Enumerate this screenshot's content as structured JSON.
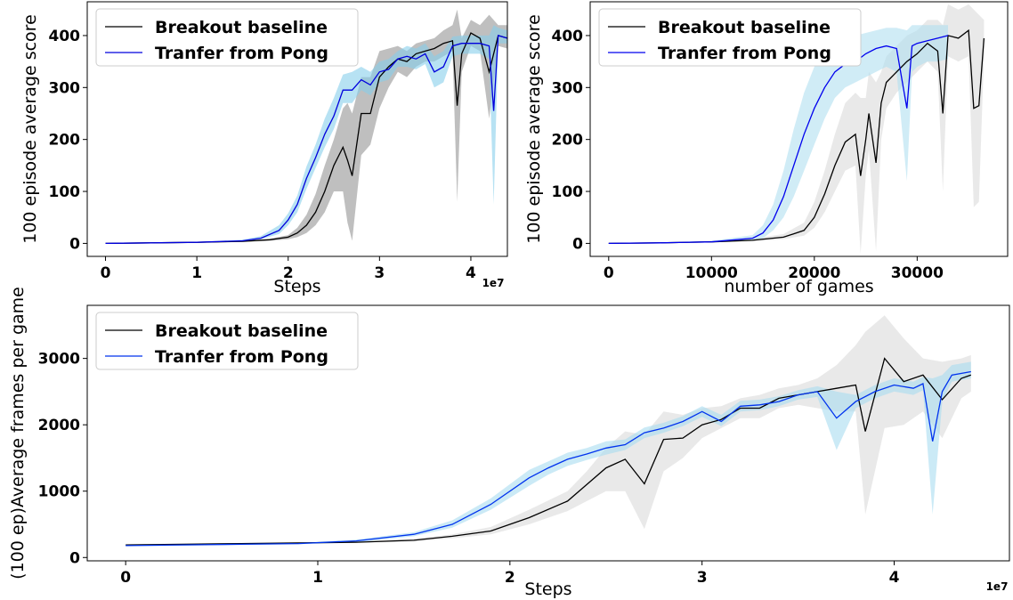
{
  "chart_data": [
    {
      "type": "line",
      "xlabel": "Steps",
      "ylabel": "100 episode average score",
      "x_offset_label": "1e7",
      "xlim": [
        -0.2,
        4.4
      ],
      "ylim": [
        -25,
        465
      ],
      "xticks": [
        0,
        1,
        2,
        3,
        4
      ],
      "xtick_labels": [
        "0",
        "1",
        "2",
        "3",
        "4"
      ],
      "yticks": [
        0,
        100,
        200,
        300,
        400
      ],
      "ytick_labels": [
        "0",
        "100",
        "200",
        "300",
        "400"
      ],
      "legend_position": "top-left",
      "series": [
        {
          "name": "Breakout baseline",
          "color": "#000000",
          "band_color": "#aaaaaa",
          "x": [
            0,
            0.5,
            1.0,
            1.5,
            1.8,
            2.0,
            2.1,
            2.2,
            2.3,
            2.4,
            2.5,
            2.6,
            2.65,
            2.7,
            2.8,
            2.9,
            3.0,
            3.1,
            3.2,
            3.3,
            3.4,
            3.5,
            3.6,
            3.7,
            3.8,
            3.85,
            3.9,
            4.0,
            4.1,
            4.2,
            4.3,
            4.4
          ],
          "values": [
            0,
            1,
            2,
            4,
            7,
            12,
            20,
            35,
            60,
            100,
            150,
            185,
            160,
            130,
            250,
            250,
            320,
            340,
            355,
            350,
            365,
            370,
            375,
            385,
            390,
            265,
            365,
            405,
            395,
            330,
            400,
            395
          ],
          "band_lower": [
            0,
            1,
            2,
            3,
            5,
            8,
            12,
            20,
            35,
            60,
            100,
            100,
            40,
            5,
            170,
            190,
            260,
            300,
            330,
            320,
            340,
            350,
            350,
            360,
            370,
            80,
            330,
            380,
            370,
            240,
            380,
            375
          ],
          "band_upper": [
            0,
            1,
            2,
            5,
            9,
            16,
            30,
            55,
            95,
            150,
            200,
            260,
            270,
            250,
            320,
            320,
            370,
            375,
            380,
            370,
            385,
            390,
            395,
            410,
            420,
            450,
            395,
            430,
            420,
            440,
            420,
            420
          ]
        },
        {
          "name": "Tranfer from Pong",
          "color": "#0000dd",
          "band_color": "#87ceeb",
          "x": [
            0,
            0.5,
            1.0,
            1.5,
            1.7,
            1.9,
            2.0,
            2.1,
            2.2,
            2.3,
            2.4,
            2.5,
            2.6,
            2.7,
            2.8,
            2.9,
            3.0,
            3.1,
            3.2,
            3.3,
            3.4,
            3.5,
            3.6,
            3.7,
            3.8,
            3.9,
            4.0,
            4.1,
            4.2,
            4.25,
            4.3,
            4.4
          ],
          "values": [
            0,
            1,
            2,
            5,
            10,
            25,
            45,
            75,
            125,
            165,
            210,
            245,
            295,
            295,
            315,
            305,
            330,
            335,
            355,
            360,
            355,
            365,
            330,
            340,
            380,
            385,
            385,
            385,
            380,
            255,
            400,
            395
          ],
          "band_lower": [
            0,
            1,
            2,
            4,
            8,
            18,
            35,
            60,
            105,
            145,
            185,
            220,
            270,
            270,
            295,
            285,
            310,
            315,
            340,
            340,
            335,
            345,
            300,
            310,
            360,
            365,
            365,
            365,
            355,
            75,
            385,
            385
          ],
          "band_upper": [
            0,
            1,
            3,
            7,
            14,
            35,
            58,
            92,
            148,
            190,
            240,
            280,
            325,
            330,
            340,
            330,
            350,
            355,
            370,
            380,
            375,
            385,
            360,
            370,
            398,
            400,
            400,
            400,
            400,
            420,
            415,
            410
          ]
        }
      ]
    },
    {
      "type": "line",
      "xlabel": "number of games",
      "ylabel": "100 episode average score",
      "xlim": [
        -1800,
        38800
      ],
      "ylim": [
        -25,
        465
      ],
      "xticks": [
        0,
        10000,
        20000,
        30000
      ],
      "xtick_labels": [
        "0",
        "10000",
        "20000",
        "30000"
      ],
      "yticks": [
        0,
        100,
        200,
        300,
        400
      ],
      "ytick_labels": [
        "0",
        "100",
        "200",
        "300",
        "400"
      ],
      "legend_position": "top-left",
      "series": [
        {
          "name": "Breakout baseline",
          "color": "#000000",
          "band_color": "#e2e2e2",
          "x": [
            0,
            5000,
            10000,
            14000,
            17000,
            19000,
            20000,
            21000,
            22000,
            23000,
            24000,
            24500,
            25000,
            25300,
            26000,
            26500,
            27000,
            28000,
            29000,
            30000,
            31000,
            32000,
            32500,
            33000,
            34000,
            35000,
            35500,
            36000,
            36500
          ],
          "values": [
            0,
            1,
            3,
            6,
            12,
            25,
            50,
            95,
            150,
            195,
            210,
            130,
            200,
            250,
            155,
            270,
            310,
            330,
            350,
            365,
            385,
            370,
            250,
            400,
            395,
            410,
            260,
            265,
            395
          ],
          "band_lower": [
            0,
            1,
            2,
            4,
            8,
            15,
            30,
            60,
            100,
            140,
            150,
            -20,
            130,
            180,
            -15,
            200,
            260,
            290,
            310,
            330,
            350,
            330,
            100,
            360,
            350,
            360,
            70,
            80,
            360
          ],
          "band_upper": [
            0,
            2,
            5,
            9,
            18,
            40,
            80,
            140,
            210,
            270,
            290,
            280,
            280,
            330,
            310,
            330,
            360,
            380,
            400,
            410,
            430,
            430,
            420,
            460,
            450,
            460,
            450,
            440,
            430
          ]
        },
        {
          "name": "Tranfer from Pong",
          "color": "#0000ee",
          "band_color": "#b0dff0",
          "x": [
            0,
            5000,
            10000,
            14000,
            15000,
            16000,
            17000,
            18000,
            19000,
            20000,
            21000,
            22000,
            23000,
            24000,
            25000,
            26000,
            27000,
            28000,
            29000,
            29500,
            30000,
            31000,
            32000,
            33000
          ],
          "values": [
            0,
            1,
            3,
            10,
            20,
            45,
            90,
            150,
            210,
            260,
            300,
            330,
            345,
            350,
            365,
            375,
            380,
            375,
            260,
            380,
            385,
            390,
            395,
            400
          ],
          "band_lower": [
            0,
            1,
            2,
            6,
            10,
            25,
            50,
            90,
            140,
            190,
            240,
            280,
            300,
            310,
            320,
            330,
            340,
            330,
            120,
            330,
            340,
            350,
            350,
            355
          ],
          "band_upper": [
            0,
            2,
            5,
            16,
            35,
            75,
            140,
            220,
            290,
            340,
            370,
            390,
            400,
            400,
            405,
            410,
            415,
            415,
            410,
            420,
            420,
            420,
            420,
            420
          ]
        }
      ]
    },
    {
      "type": "line",
      "xlabel": "Steps",
      "ylabel": "(100 ep)Average frames per game",
      "x_offset_label": "1e7",
      "xlim": [
        -0.2,
        4.6
      ],
      "ylim": [
        -50,
        3800
      ],
      "xticks": [
        0,
        1,
        2,
        3,
        4
      ],
      "xtick_labels": [
        "0",
        "1",
        "2",
        "3",
        "4"
      ],
      "yticks": [
        0,
        1000,
        2000,
        3000
      ],
      "ytick_labels": [
        "0",
        "1000",
        "2000",
        "3000"
      ],
      "legend_position": "top-left",
      "series": [
        {
          "name": "Breakout baseline",
          "color": "#000000",
          "band_color": "#e2e2e2",
          "x": [
            0,
            0.3,
            0.6,
            0.9,
            1.2,
            1.5,
            1.7,
            1.9,
            2.1,
            2.3,
            2.4,
            2.5,
            2.6,
            2.7,
            2.8,
            2.9,
            3.0,
            3.1,
            3.2,
            3.3,
            3.4,
            3.5,
            3.6,
            3.7,
            3.8,
            3.85,
            3.95,
            4.05,
            4.15,
            4.25,
            4.35,
            4.4
          ],
          "values": [
            190,
            200,
            210,
            220,
            230,
            260,
            320,
            400,
            600,
            850,
            1100,
            1350,
            1480,
            1110,
            1780,
            1800,
            2000,
            2080,
            2250,
            2250,
            2400,
            2450,
            2500,
            2550,
            2600,
            1900,
            3000,
            2650,
            2750,
            2380,
            2700,
            2750
          ],
          "band_lower": [
            180,
            190,
            200,
            210,
            220,
            240,
            290,
            350,
            500,
            700,
            850,
            1000,
            1000,
            430,
            1300,
            1500,
            1800,
            1950,
            2100,
            2100,
            2250,
            2300,
            2250,
            2200,
            2200,
            650,
            1950,
            2000,
            2200,
            1800,
            2400,
            2500
          ],
          "band_upper": [
            200,
            210,
            220,
            230,
            240,
            280,
            350,
            460,
            720,
            1000,
            1300,
            1650,
            1900,
            1850,
            2200,
            2150,
            2250,
            2280,
            2400,
            2450,
            2550,
            2600,
            2700,
            2900,
            3200,
            3400,
            3650,
            3300,
            3000,
            2950,
            3000,
            3050
          ]
        },
        {
          "name": "Tranfer from Pong",
          "color": "#0033ee",
          "band_color": "#a8dcf0",
          "x": [
            0,
            0.3,
            0.6,
            0.9,
            1.2,
            1.5,
            1.7,
            1.9,
            2.1,
            2.2,
            2.3,
            2.4,
            2.5,
            2.6,
            2.7,
            2.8,
            2.9,
            3.0,
            3.1,
            3.2,
            3.3,
            3.4,
            3.5,
            3.6,
            3.7,
            3.8,
            3.9,
            4.0,
            4.1,
            4.15,
            4.2,
            4.25,
            4.3,
            4.4
          ],
          "values": [
            180,
            190,
            200,
            210,
            250,
            350,
            500,
            800,
            1200,
            1350,
            1480,
            1560,
            1650,
            1700,
            1880,
            1950,
            2050,
            2200,
            2050,
            2280,
            2300,
            2350,
            2450,
            2500,
            2100,
            2350,
            2500,
            2600,
            2550,
            2620,
            1750,
            2500,
            2750,
            2800
          ],
          "band_lower": [
            170,
            180,
            190,
            200,
            230,
            320,
            450,
            720,
            1080,
            1250,
            1380,
            1470,
            1550,
            1620,
            1800,
            1880,
            1980,
            2120,
            1980,
            2200,
            2220,
            2280,
            2380,
            2420,
            1620,
            2250,
            2400,
            2500,
            2450,
            2520,
            650,
            2350,
            2650,
            2700
          ],
          "band_upper": [
            190,
            200,
            210,
            220,
            270,
            380,
            560,
            890,
            1320,
            1450,
            1580,
            1650,
            1750,
            1780,
            1960,
            2030,
            2130,
            2280,
            2150,
            2360,
            2380,
            2430,
            2520,
            2580,
            2500,
            2450,
            2600,
            2700,
            2650,
            2720,
            2700,
            2750,
            2900,
            2950
          ]
        }
      ]
    }
  ]
}
